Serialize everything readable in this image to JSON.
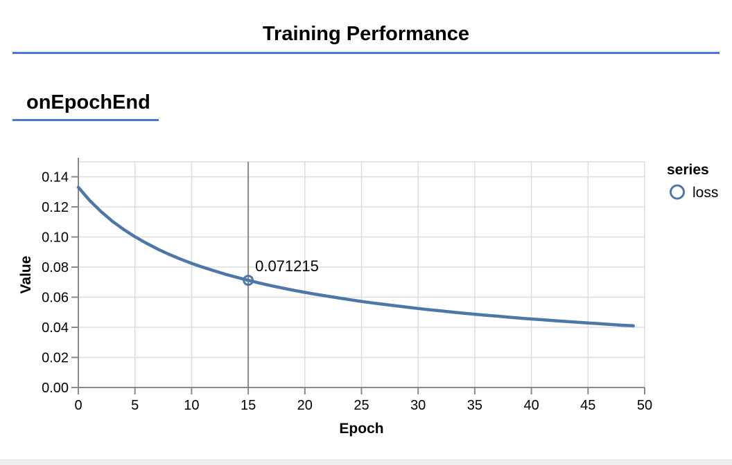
{
  "page": {
    "title": "Training Performance"
  },
  "section": {
    "heading": "onEpochEnd"
  },
  "colors": {
    "accent_blue": "#4878d4",
    "series_line": "#4c78a8",
    "grid": "#dddddd",
    "axis": "#888888",
    "crosshair": "#888888",
    "text": "#000000",
    "bottom_strip": "#ededed"
  },
  "chart_data": {
    "type": "line",
    "title": "",
    "xlabel": "Epoch",
    "ylabel": "Value",
    "xlim": [
      0,
      50
    ],
    "ylim": [
      0,
      0.15
    ],
    "grid": true,
    "x_ticks": [
      0,
      5,
      10,
      15,
      20,
      25,
      30,
      35,
      40,
      45,
      50
    ],
    "y_tick_values": [
      0,
      0.02,
      0.04,
      0.06,
      0.08,
      0.1,
      0.12,
      0.14
    ],
    "y_tick_labels": [
      "0.00",
      "0.02",
      "0.04",
      "0.06",
      "0.08",
      "0.10",
      "0.12",
      "0.14"
    ],
    "legend": {
      "title": "series",
      "position": "right",
      "entries": [
        {
          "label": "loss",
          "marker": "open-circle"
        }
      ]
    },
    "series": [
      {
        "name": "loss",
        "x": [
          0,
          1,
          2,
          3,
          4,
          5,
          6,
          7,
          8,
          9,
          10,
          11,
          12,
          13,
          14,
          15,
          16,
          17,
          18,
          19,
          20,
          21,
          22,
          23,
          24,
          25,
          26,
          27,
          28,
          29,
          30,
          31,
          32,
          33,
          34,
          35,
          36,
          37,
          38,
          39,
          40,
          41,
          42,
          43,
          44,
          45,
          46,
          47,
          48,
          49
        ],
        "values": [
          0.133,
          0.1243,
          0.1169,
          0.1105,
          0.105,
          0.1002,
          0.0959,
          0.092,
          0.0885,
          0.0854,
          0.0825,
          0.0799,
          0.0775,
          0.0752,
          0.0732,
          0.071215,
          0.0694,
          0.0677,
          0.0661,
          0.0646,
          0.0632,
          0.0619,
          0.0607,
          0.0595,
          0.0583,
          0.0572,
          0.0562,
          0.0552,
          0.0543,
          0.0534,
          0.0525,
          0.0517,
          0.0509,
          0.0501,
          0.0494,
          0.0487,
          0.048,
          0.0474,
          0.0467,
          0.0461,
          0.0455,
          0.045,
          0.0444,
          0.0439,
          0.0434,
          0.0429,
          0.0424,
          0.0419,
          0.0414,
          0.041
        ]
      }
    ],
    "annotation": {
      "epoch": 15,
      "value": 0.071215,
      "label": "0.071215"
    }
  }
}
